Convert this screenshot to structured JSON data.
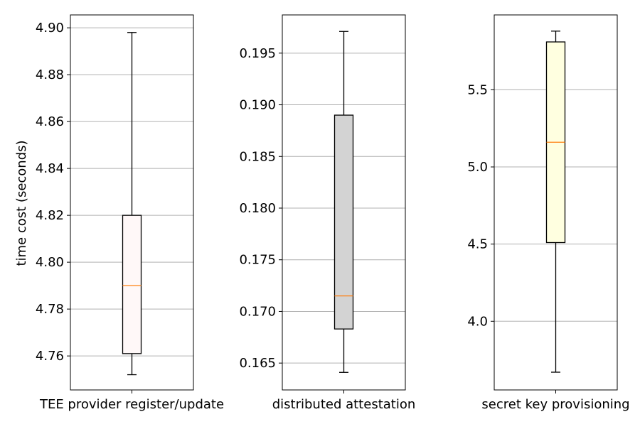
{
  "chart_data": {
    "type": "box",
    "ylabel": "time cost (seconds)",
    "grid": "y",
    "panels": [
      {
        "category": "TEE provider register/update",
        "ylim": [
          4.7455,
          4.9055
        ],
        "ticks": [
          "4.76",
          "4.78",
          "4.80",
          "4.82",
          "4.84",
          "4.86",
          "4.88",
          "4.90"
        ],
        "tick_values": [
          4.76,
          4.78,
          4.8,
          4.82,
          4.84,
          4.86,
          4.88,
          4.9
        ],
        "min": 4.752,
        "q1": 4.761,
        "median": 4.79,
        "q3": 4.82,
        "max": 4.898,
        "fill": "#fff8f8"
      },
      {
        "category": "distributed attestation",
        "ylim": [
          0.1624,
          0.1987
        ],
        "ticks": [
          "0.165",
          "0.170",
          "0.175",
          "0.180",
          "0.185",
          "0.190",
          "0.195"
        ],
        "tick_values": [
          0.165,
          0.17,
          0.175,
          0.18,
          0.185,
          0.19,
          0.195
        ],
        "min": 0.1641,
        "q1": 0.1683,
        "median": 0.1715,
        "q3": 0.189,
        "max": 0.1971,
        "fill": "#d3d3d3"
      },
      {
        "category": "secret key provisioning",
        "ylim": [
          3.555,
          5.985
        ],
        "ticks": [
          "4.0",
          "4.5",
          "5.0",
          "5.5"
        ],
        "tick_values": [
          4.0,
          4.5,
          5.0,
          5.5
        ],
        "min": 3.67,
        "q1": 4.51,
        "median": 5.16,
        "q3": 5.81,
        "max": 5.88,
        "fill": "#ffffe0"
      }
    ],
    "median_color": "#ff7f0e",
    "grid_color": "#b0b0b0"
  }
}
